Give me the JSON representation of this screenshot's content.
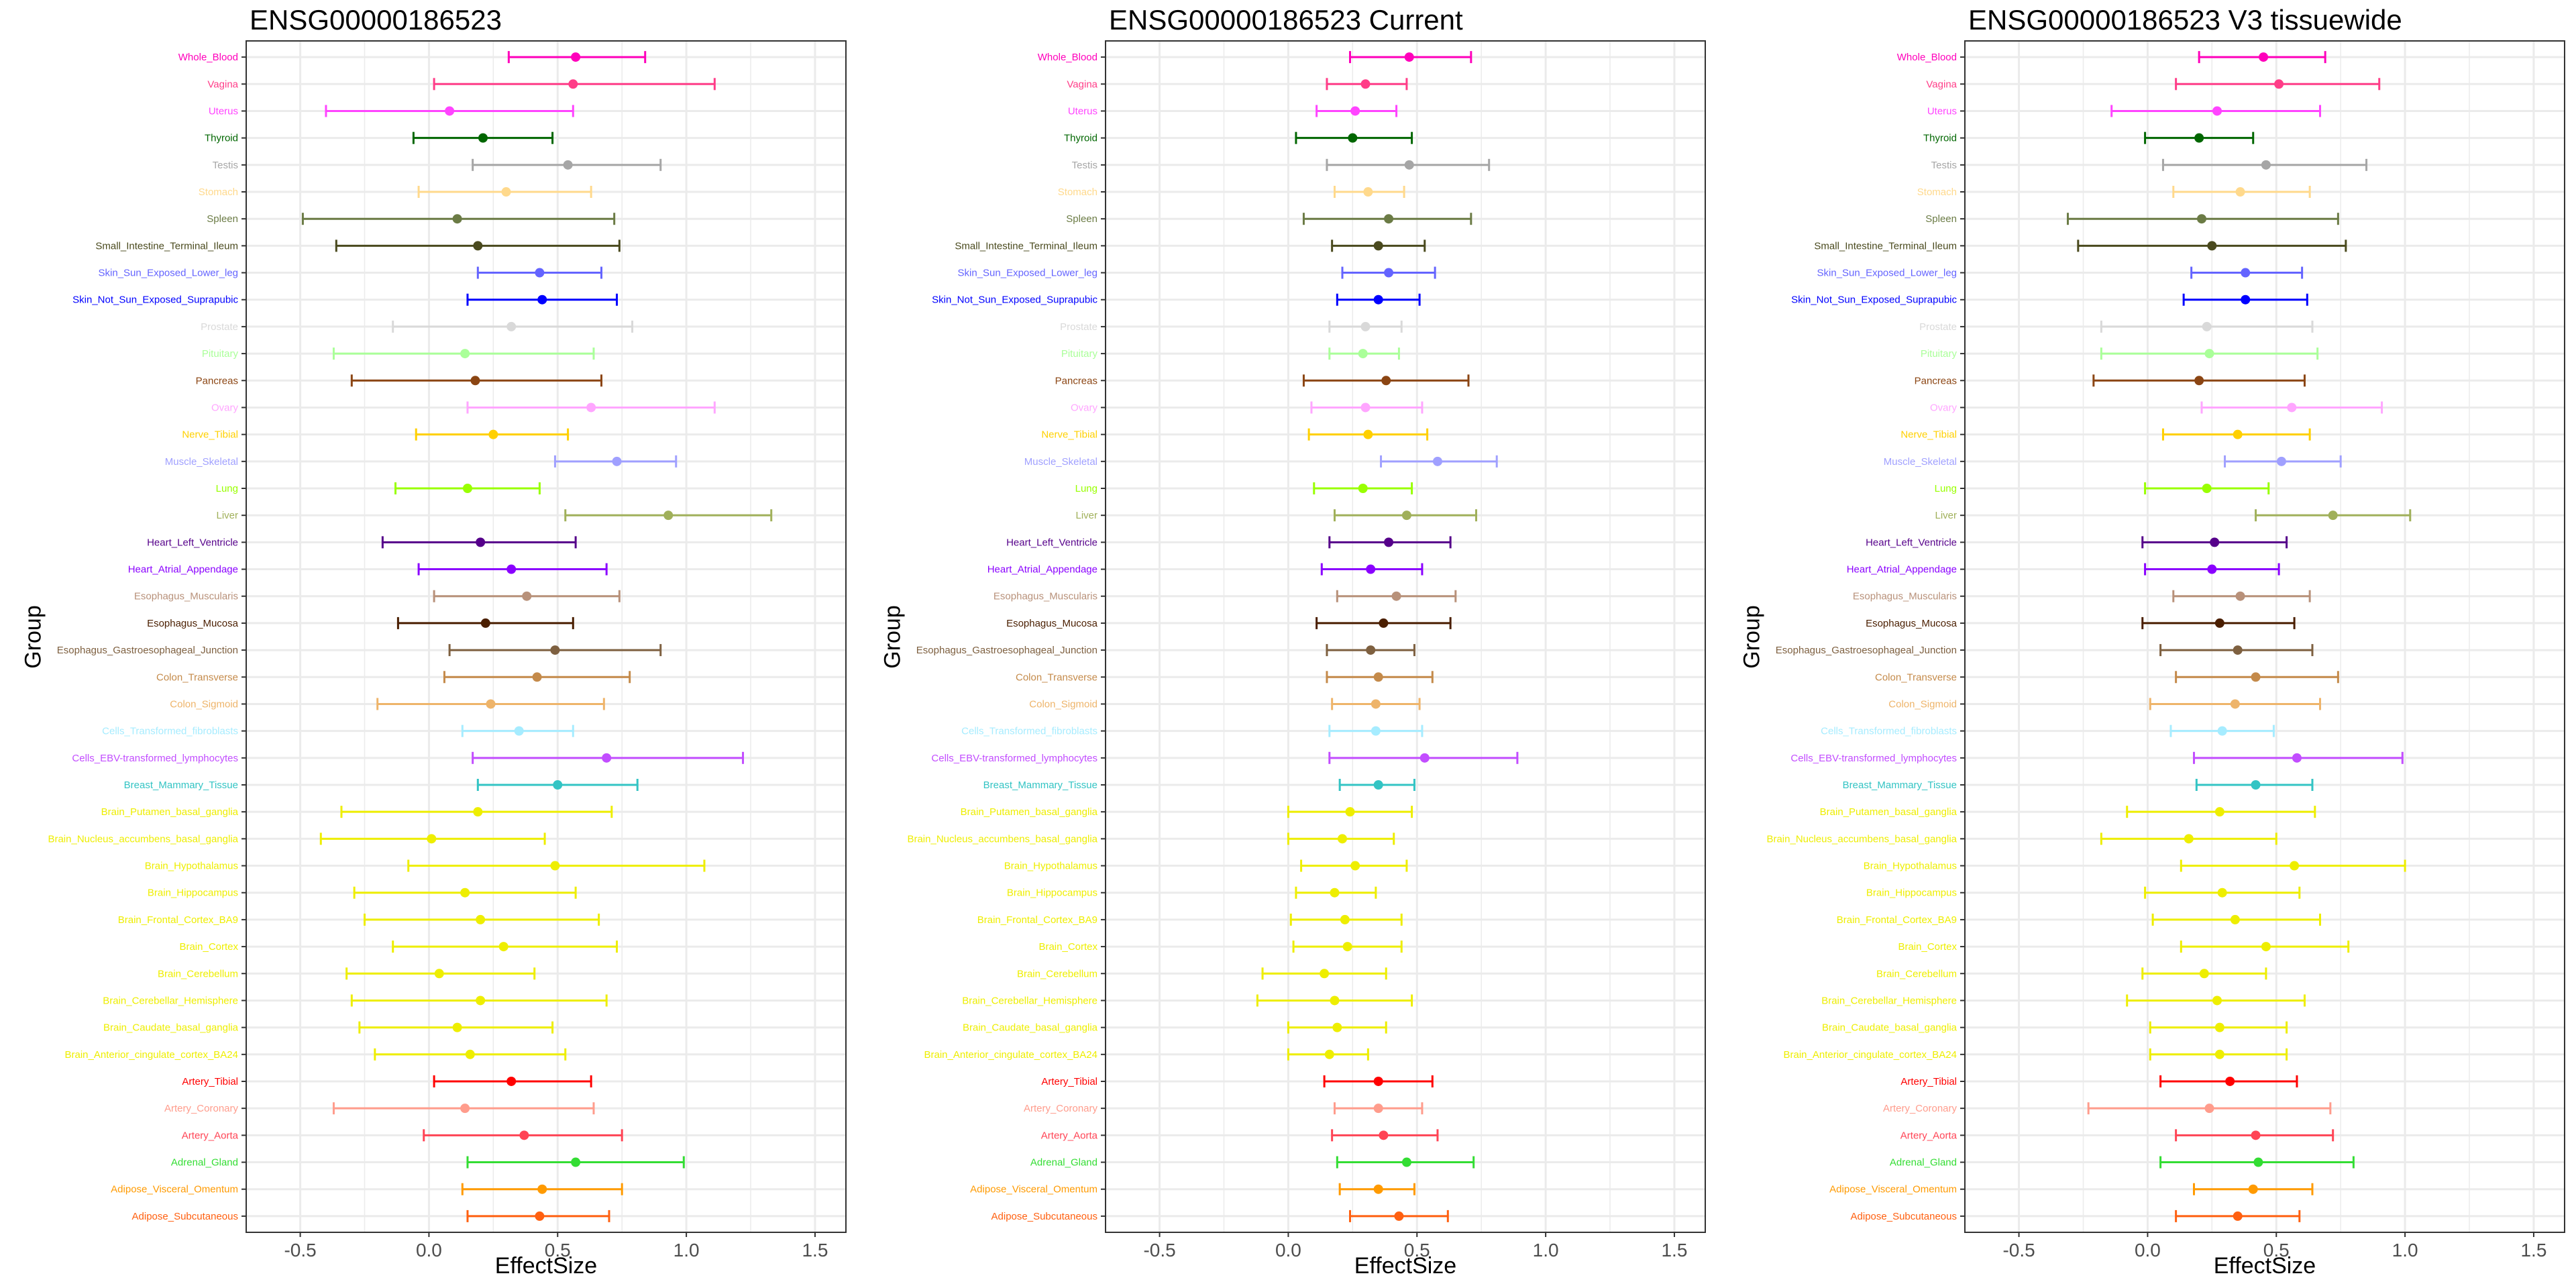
{
  "chart_data": {
    "type": "scatter",
    "subtype": "errorbar",
    "xlabel": "EffectSize",
    "ylabel": "Group",
    "xlim": [
      -0.71,
      1.62
    ],
    "xticks": [
      -0.5,
      0,
      0.5,
      1,
      1.5
    ],
    "xtick_labels": [
      "-0.5",
      "0.0",
      "0.5",
      "1.0",
      "1.5"
    ],
    "grid": true,
    "categories": [
      "Whole_Blood",
      "Vagina",
      "Uterus",
      "Thyroid",
      "Testis",
      "Stomach",
      "Spleen",
      "Small_Intestine_Terminal_Ileum",
      "Skin_Sun_Exposed_Lower_leg",
      "Skin_Not_Sun_Exposed_Suprapubic",
      "Prostate",
      "Pituitary",
      "Pancreas",
      "Ovary",
      "Nerve_Tibial",
      "Muscle_Skeletal",
      "Lung",
      "Liver",
      "Heart_Left_Ventricle",
      "Heart_Atrial_Appendage",
      "Esophagus_Muscularis",
      "Esophagus_Mucosa",
      "Esophagus_Gastroesophageal_Junction",
      "Colon_Transverse",
      "Colon_Sigmoid",
      "Cells_Transformed_fibroblasts",
      "Cells_EBV-transformed_lymphocytes",
      "Breast_Mammary_Tissue",
      "Brain_Putamen_basal_ganglia",
      "Brain_Nucleus_accumbens_basal_ganglia",
      "Brain_Hypothalamus",
      "Brain_Hippocampus",
      "Brain_Frontal_Cortex_BA9",
      "Brain_Cortex",
      "Brain_Cerebellum",
      "Brain_Cerebellar_Hemisphere",
      "Brain_Caudate_basal_ganglia",
      "Brain_Anterior_cingulate_cortex_BA24",
      "Artery_Tibial",
      "Artery_Coronary",
      "Artery_Aorta",
      "Adrenal_Gland",
      "Adipose_Visceral_Omentum",
      "Adipose_Subcutaneous"
    ],
    "colors": [
      "#FF00BB",
      "#FF3D88",
      "#FF44FF",
      "#006600",
      "#A6A6A6",
      "#FFD98C",
      "#6B7B45",
      "#4A4A1E",
      "#6464FF",
      "#0000FF",
      "#D9D9D9",
      "#AAFF99",
      "#8B4513",
      "#FFA6FF",
      "#FFD000",
      "#A0A0FF",
      "#99FF00",
      "#A0B05A",
      "#55008A",
      "#8A00FF",
      "#B8917A",
      "#4A1E00",
      "#7E6040",
      "#C48A4A",
      "#EEB46A",
      "#A6ECFF",
      "#C24DFF",
      "#33C4C4",
      "#EEEE00",
      "#EEEE00",
      "#EEEE00",
      "#EEEE00",
      "#EEEE00",
      "#EEEE00",
      "#EEEE00",
      "#EEEE00",
      "#EEEE00",
      "#EEEE00",
      "#FF0000",
      "#FF9C8C",
      "#FF4455",
      "#33DD33",
      "#FF9A00",
      "#FF6010"
    ],
    "panels": [
      {
        "title": "ENSG00000186523",
        "estimate": [
          0.57,
          0.56,
          0.08,
          0.21,
          0.54,
          0.3,
          0.11,
          0.19,
          0.43,
          0.44,
          0.32,
          0.14,
          0.18,
          0.63,
          0.25,
          0.73,
          0.15,
          0.93,
          0.2,
          0.32,
          0.38,
          0.22,
          0.49,
          0.42,
          0.24,
          0.35,
          0.69,
          0.5,
          0.19,
          0.01,
          0.49,
          0.14,
          0.2,
          0.29,
          0.04,
          0.2,
          0.11,
          0.16,
          0.32,
          0.14,
          0.37,
          0.57,
          0.44,
          0.43
        ],
        "lower": [
          0.31,
          0.02,
          -0.4,
          -0.06,
          0.17,
          -0.04,
          -0.49,
          -0.36,
          0.19,
          0.15,
          -0.14,
          -0.37,
          -0.3,
          0.15,
          -0.05,
          0.49,
          -0.13,
          0.53,
          -0.18,
          -0.04,
          0.02,
          -0.12,
          0.08,
          0.06,
          -0.2,
          0.13,
          0.17,
          0.19,
          -0.34,
          -0.42,
          -0.08,
          -0.29,
          -0.25,
          -0.14,
          -0.32,
          -0.3,
          -0.27,
          -0.21,
          0.02,
          -0.37,
          -0.02,
          0.15,
          0.13,
          0.15
        ],
        "upper": [
          0.84,
          1.11,
          0.56,
          0.48,
          0.9,
          0.63,
          0.72,
          0.74,
          0.67,
          0.73,
          0.79,
          0.64,
          0.67,
          1.11,
          0.54,
          0.96,
          0.43,
          1.33,
          0.57,
          0.69,
          0.74,
          0.56,
          0.9,
          0.78,
          0.68,
          0.56,
          1.22,
          0.81,
          0.71,
          0.45,
          1.07,
          0.57,
          0.66,
          0.73,
          0.41,
          0.69,
          0.48,
          0.53,
          0.63,
          0.64,
          0.75,
          0.99,
          0.75,
          0.7
        ]
      },
      {
        "title": "ENSG00000186523 Current",
        "estimate": [
          0.47,
          0.3,
          0.26,
          0.25,
          0.47,
          0.31,
          0.39,
          0.35,
          0.39,
          0.35,
          0.3,
          0.29,
          0.38,
          0.3,
          0.31,
          0.58,
          0.29,
          0.46,
          0.39,
          0.32,
          0.42,
          0.37,
          0.32,
          0.35,
          0.34,
          0.34,
          0.53,
          0.35,
          0.24,
          0.21,
          0.26,
          0.18,
          0.22,
          0.23,
          0.14,
          0.18,
          0.19,
          0.16,
          0.35,
          0.35,
          0.37,
          0.46,
          0.35,
          0.43
        ],
        "lower": [
          0.24,
          0.15,
          0.11,
          0.03,
          0.15,
          0.18,
          0.06,
          0.17,
          0.21,
          0.19,
          0.16,
          0.16,
          0.06,
          0.09,
          0.08,
          0.36,
          0.1,
          0.18,
          0.16,
          0.13,
          0.19,
          0.11,
          0.15,
          0.15,
          0.17,
          0.16,
          0.16,
          0.2,
          0.0,
          0.0,
          0.05,
          0.03,
          0.01,
          0.02,
          -0.1,
          -0.12,
          0.0,
          0.0,
          0.14,
          0.18,
          0.17,
          0.19,
          0.2,
          0.24
        ],
        "upper": [
          0.71,
          0.46,
          0.42,
          0.48,
          0.78,
          0.45,
          0.71,
          0.53,
          0.57,
          0.51,
          0.44,
          0.43,
          0.7,
          0.52,
          0.54,
          0.81,
          0.48,
          0.73,
          0.63,
          0.52,
          0.65,
          0.63,
          0.49,
          0.56,
          0.51,
          0.52,
          0.89,
          0.49,
          0.48,
          0.41,
          0.46,
          0.34,
          0.44,
          0.44,
          0.38,
          0.48,
          0.38,
          0.31,
          0.56,
          0.52,
          0.58,
          0.72,
          0.49,
          0.62
        ]
      },
      {
        "title": "ENSG00000186523 V3 tissuewide",
        "estimate": [
          0.45,
          0.51,
          0.27,
          0.2,
          0.46,
          0.36,
          0.21,
          0.25,
          0.38,
          0.38,
          0.23,
          0.24,
          0.2,
          0.56,
          0.35,
          0.52,
          0.23,
          0.72,
          0.26,
          0.25,
          0.36,
          0.28,
          0.35,
          0.42,
          0.34,
          0.29,
          0.58,
          0.42,
          0.28,
          0.16,
          0.57,
          0.29,
          0.34,
          0.46,
          0.22,
          0.27,
          0.28,
          0.28,
          0.32,
          0.24,
          0.42,
          0.43,
          0.41,
          0.35
        ],
        "lower": [
          0.2,
          0.11,
          -0.14,
          -0.01,
          0.06,
          0.1,
          -0.31,
          -0.27,
          0.17,
          0.14,
          -0.18,
          -0.18,
          -0.21,
          0.21,
          0.06,
          0.3,
          -0.01,
          0.42,
          -0.02,
          -0.01,
          0.1,
          -0.02,
          0.05,
          0.11,
          0.01,
          0.09,
          0.18,
          0.19,
          -0.08,
          -0.18,
          0.13,
          -0.01,
          0.02,
          0.13,
          -0.02,
          -0.08,
          0.01,
          0.01,
          0.05,
          -0.23,
          0.11,
          0.05,
          0.18,
          0.11
        ],
        "upper": [
          0.69,
          0.9,
          0.67,
          0.41,
          0.85,
          0.63,
          0.74,
          0.77,
          0.6,
          0.62,
          0.64,
          0.66,
          0.61,
          0.91,
          0.63,
          0.75,
          0.47,
          1.02,
          0.54,
          0.51,
          0.63,
          0.57,
          0.64,
          0.74,
          0.67,
          0.49,
          0.99,
          0.64,
          0.65,
          0.5,
          1.0,
          0.59,
          0.67,
          0.78,
          0.46,
          0.61,
          0.54,
          0.54,
          0.58,
          0.71,
          0.72,
          0.8,
          0.64,
          0.59
        ]
      }
    ]
  }
}
